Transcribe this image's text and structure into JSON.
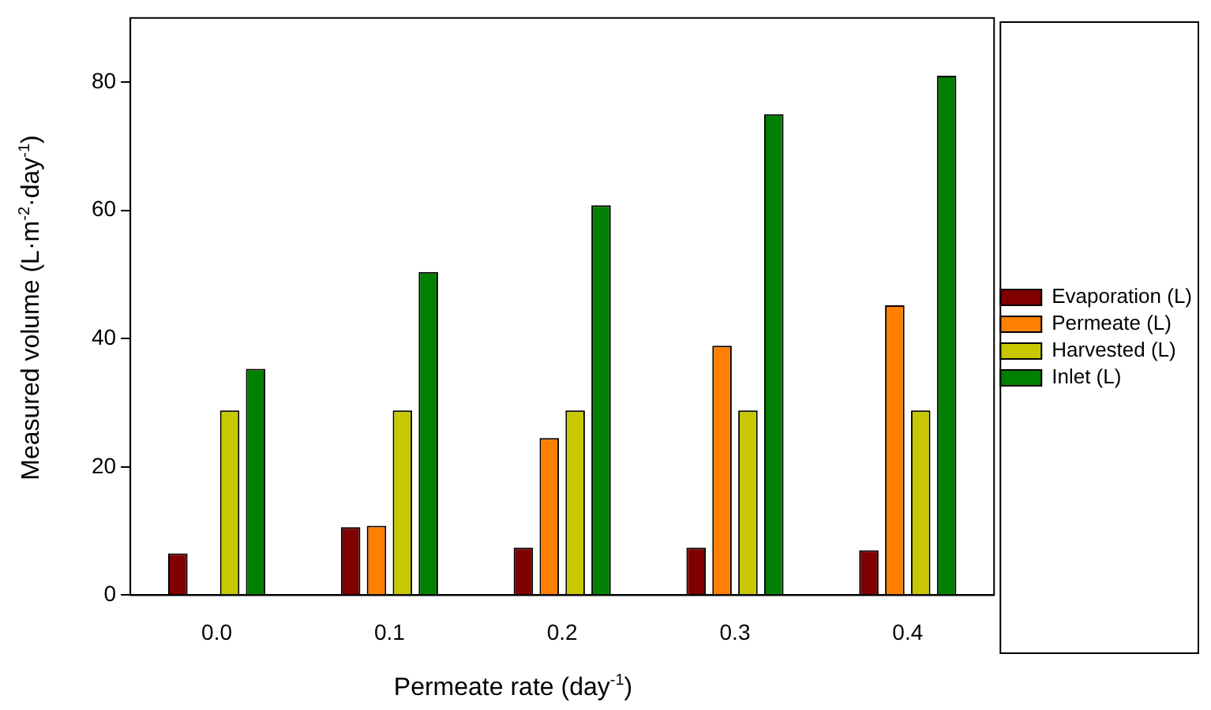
{
  "chart_data": {
    "type": "bar",
    "xlabel": "Permeate rate (day$^{-1}$)",
    "ylabel": "Measured volume (L·m$^{-2}$·day$^{-1}$)",
    "categories": [
      "0.0",
      "0.1",
      "0.2",
      "0.3",
      "0.4"
    ],
    "series": [
      {
        "name": "Evaporation (L)",
        "color": "#800000",
        "values": [
          6.5,
          10.6,
          7.4,
          7.4,
          7
        ]
      },
      {
        "name": "Permeate (L)",
        "color": "#ff8000",
        "values": [
          0,
          10.8,
          24.5,
          38.9,
          45.2
        ]
      },
      {
        "name": "Harvested (L)",
        "color": "#c8c800",
        "values": [
          28.8,
          28.8,
          28.8,
          28.8,
          28.8
        ]
      },
      {
        "name": "Inlet (L)",
        "color": "#008000",
        "values": [
          35.3,
          50.4,
          60.8,
          75,
          81
        ]
      }
    ],
    "ylim": [
      0,
      90
    ],
    "yticks": [
      0,
      20,
      40,
      60,
      80
    ],
    "grid": false,
    "legend": "right"
  }
}
